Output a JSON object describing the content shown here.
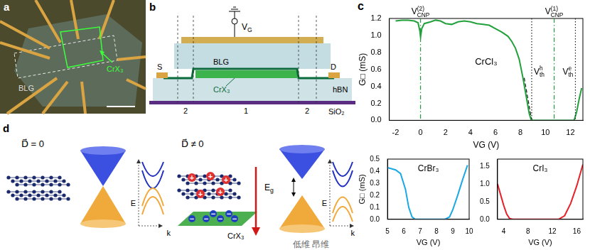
{
  "panels": {
    "a": {
      "letter": "a",
      "labels": {
        "graphene": "BLG",
        "magnet": "CrX₃"
      }
    },
    "b": {
      "letter": "b",
      "labels": {
        "gate": {
          "base": "V",
          "sub": "G"
        },
        "source": "S",
        "drain": "D",
        "graphene": "BLG",
        "magnet": "CrX₃",
        "dielectric": "hBN",
        "substrate": "SiO₂"
      },
      "regions": [
        "2",
        "1",
        "2"
      ]
    },
    "c": {
      "letter": "c"
    },
    "d": {
      "letter": "d",
      "left": {
        "field": "D⃗ = 0",
        "axes": [
          "E",
          "k"
        ]
      },
      "right": {
        "field": "D⃗ ≠ 0",
        "axes": [
          "E",
          "k"
        ],
        "gap": {
          "base": "E",
          "sub": "g"
        },
        "magnet": "CrX₃",
        "charges": [
          "+",
          "−"
        ]
      }
    }
  },
  "chart_data": [
    {
      "type": "line",
      "title": "CrCl₃",
      "xlabel": "VG (V)",
      "ylabel": "G□ (mS)",
      "x": [
        -2,
        -1.5,
        -1,
        -0.5,
        -0.2,
        -0.05,
        0,
        0.1,
        0.3,
        0.8,
        1.2,
        1.6,
        2,
        2.5,
        3,
        3.5,
        4,
        4.5,
        5,
        5.5,
        6,
        6.5,
        7,
        7.3,
        7.6,
        7.9,
        8.2,
        8.5,
        8.7,
        8.85,
        9,
        10,
        11,
        12,
        12.3,
        12.5,
        12.7,
        12.9
      ],
      "series": [
        {
          "color": "#22a03c",
          "values": [
            1.17,
            1.18,
            1.18,
            1.17,
            1.15,
            1.05,
            0.98,
            1.08,
            1.14,
            1.16,
            1.18,
            1.17,
            1.14,
            1.13,
            1.16,
            1.17,
            1.16,
            1.14,
            1.13,
            1.12,
            1.08,
            1.04,
            0.99,
            0.93,
            0.85,
            0.72,
            0.5,
            0.25,
            0.08,
            0.01,
            0,
            0,
            0,
            0,
            0,
            0.1,
            0.25,
            0.38
          ]
        }
      ],
      "xlim": [
        -2.5,
        13
      ],
      "xticks": [
        -2,
        0,
        2,
        4,
        6,
        8,
        10,
        12
      ],
      "ylim": [
        0,
        1.2
      ],
      "yticks": [
        {
          "value": 0,
          "label": "0.0"
        },
        0.2,
        0.4,
        0.6,
        0.8,
        {
          "value": 1,
          "label": "1.0"
        },
        1.2
      ],
      "grid": false,
      "fit_line": {
        "x": [
          8.3,
          8.9
        ],
        "y": [
          0.5,
          0
        ],
        "color": "#222222",
        "line_style": "dashed"
      },
      "annotations": [
        {
          "text": {
            "base": "V",
            "sub": "CNP",
            "sup": "(2)"
          },
          "x": 0,
          "color": "#22a03c",
          "line_style": "dashdot"
        },
        {
          "text": {
            "base": "V",
            "sub": "CNP",
            "sup": "(1)"
          },
          "x": 10.7,
          "color": "#22a03c",
          "line_style": "dashdot"
        },
        {
          "text": {
            "base": "V",
            "sub": "th",
            "sup": "h"
          },
          "x": 8.9,
          "color": "#222222",
          "line_style": "dotted"
        },
        {
          "text": {
            "base": "V",
            "sub": "th",
            "sup": "e"
          },
          "x": 12.4,
          "color": "#222222",
          "line_style": "dotted"
        }
      ]
    },
    {
      "type": "line",
      "title": "CrBr₃",
      "xlabel": "VG (V)",
      "ylabel": "G□ (mS)",
      "x": [
        5,
        5.5,
        5.8,
        6.1,
        6.3,
        6.5,
        6.7,
        7,
        8,
        8.5,
        8.8,
        9,
        9.3,
        9.6,
        9.9
      ],
      "series": [
        {
          "color": "#1aa7e6",
          "values": [
            0.43,
            0.41,
            0.38,
            0.25,
            0.1,
            0.02,
            0,
            0,
            0,
            0,
            0.02,
            0.08,
            0.2,
            0.33,
            0.45
          ]
        }
      ],
      "xlim": [
        5,
        10
      ],
      "xticks": [
        5,
        6,
        7,
        8,
        9,
        10
      ],
      "ylim": [
        0,
        0.5
      ],
      "yticks": [
        {
          "value": 0,
          "label": "0.0"
        },
        0.1,
        0.2,
        0.3,
        0.4,
        0.5
      ],
      "grid": false
    },
    {
      "type": "line",
      "title": "CrI₃",
      "xlabel": "VG (V)",
      "x": [
        3,
        3.5,
        4,
        4.5,
        5,
        5.5,
        8,
        13,
        14,
        15,
        16,
        17
      ],
      "series": [
        {
          "color": "#e8202a",
          "values": [
            1.0,
            0.7,
            0.4,
            0.15,
            0.02,
            0,
            0,
            0,
            0.1,
            0.45,
            0.95,
            1.55
          ]
        }
      ],
      "xlim": [
        3,
        17
      ],
      "xticks": [
        4,
        8,
        12,
        16
      ],
      "ylim": [
        0,
        1.7
      ],
      "yticks": [
        {
          "value": 0,
          "label": "0.0"
        },
        0.5,
        {
          "value": 1,
          "label": "1.0"
        },
        1.5
      ],
      "grid": false
    }
  ],
  "watermark": "低维 昂维"
}
